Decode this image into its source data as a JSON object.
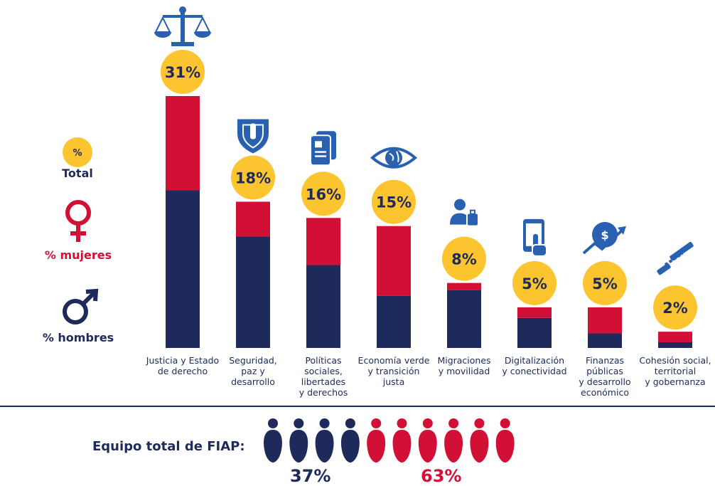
{
  "colors": {
    "women": "#d20f35",
    "men": "#1e2a5a",
    "bubble": "#fcc52f",
    "icon": "#2a60b0",
    "divider": "#1e2a5a"
  },
  "legend": {
    "total_symbol": "%",
    "total_label": "Total",
    "women_label": "% mujeres",
    "men_label": "% hombres"
  },
  "chart_data": {
    "type": "bar",
    "stacked": true,
    "categories": [
      "Justicia y Estado\nde derecho",
      "Seguridad,\npaz y\ndesarrollo",
      "Políticas\nsociales,\nlibertades\ny derechos",
      "Economía verde\ny transición justa",
      "Migraciones\ny movilidad",
      "Digitalización\ny conectividad",
      "Finanzas\npúblicas\ny desarrollo\neconómico",
      "Cohesión social,\nterritorial\ny gobernanza"
    ],
    "total_labels": [
      "31%",
      "18%",
      "16%",
      "15%",
      "8%",
      "5%",
      "5%",
      "2%"
    ],
    "totals": [
      31,
      18,
      16,
      15,
      8,
      5,
      5,
      2
    ],
    "series": [
      {
        "name": "% hombres",
        "values": [
          19.4,
          13.7,
          10.2,
          6.4,
          7.1,
          3.7,
          1.8,
          0.7
        ]
      },
      {
        "name": "% mujeres",
        "values": [
          11.6,
          4.3,
          5.8,
          8.6,
          0.9,
          1.3,
          3.2,
          1.3
        ]
      }
    ],
    "icons": [
      "scales-icon",
      "shield-icon",
      "documents-icon",
      "eye-globe-icon",
      "person-luggage-icon",
      "smartphone-tap-icon",
      "growth-arrow-icon",
      "chain-link-icon"
    ],
    "ylim": [
      0,
      31
    ]
  },
  "team": {
    "label": "Equipo total de FIAP:",
    "men_count": 4,
    "women_count": 6,
    "men_pct": "37%",
    "women_pct": "63%"
  }
}
